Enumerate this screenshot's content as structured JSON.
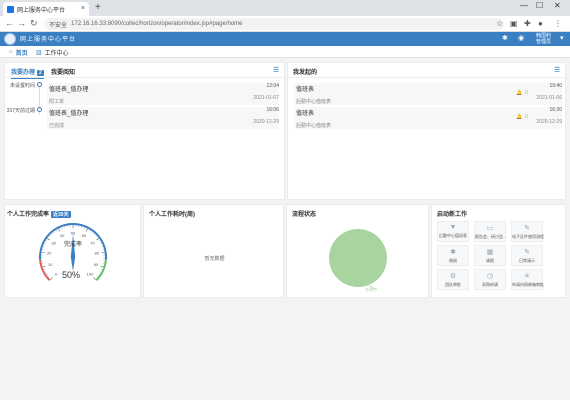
{
  "browser": {
    "tab_title": "网上服务中心平台",
    "tab_close": "×",
    "new_tab": "+",
    "win_min": "—",
    "win_max": "☐",
    "win_close": "✕",
    "insecure_label": "不安全",
    "url": "172.16.16.33:8090/coltec/horizon/operator/index.jsp#page/home"
  },
  "app": {
    "title": "网上服务中心平台",
    "user_name": "韩国利",
    "user_role": "管理员"
  },
  "nav": {
    "home": "首页",
    "workcenter": "工作中心"
  },
  "todo": {
    "tab_label": "我要办理",
    "tab_badge": "2",
    "notice_tab": "我要阅知",
    "timeline": [
      {
        "label": "未设置时间"
      },
      {
        "label": "337天前过期"
      }
    ],
    "items": [
      {
        "title": "值班表_值办理",
        "sub": "附工单",
        "time": "12:04",
        "date": "2021-01-07"
      },
      {
        "title": "值班表_值办理",
        "sub": "已完成",
        "time": "16:06",
        "date": "2020-12-29"
      }
    ]
  },
  "sent": {
    "title": "我发起的",
    "items": [
      {
        "title": "值班表",
        "sub": "后勤中心值班表",
        "count": "0",
        "time": "19:40",
        "date": "2021-01-06"
      },
      {
        "title": "值班表",
        "sub": "后勤中心值班表",
        "count": "0",
        "time": "16:30",
        "date": "2020-12-29"
      }
    ]
  },
  "gauge": {
    "title": "个人工作完成率",
    "badge": "近30天",
    "center_label": "完成率",
    "value_text": "50%",
    "value": 50,
    "ticks": [
      "0",
      "10",
      "20",
      "30",
      "40",
      "50",
      "60",
      "70",
      "80",
      "90",
      "100"
    ]
  },
  "dispatch": {
    "title": "个人工作耗时(周)",
    "empty": "暂无数据"
  },
  "flow": {
    "title": "流程状态",
    "legend": "办理中"
  },
  "quick": {
    "title": "启动新工作",
    "items": [
      {
        "label": "后勤中心值班表",
        "icon": "filter-icon",
        "glyph": "▼"
      },
      {
        "label": "报告会、研讨会...",
        "icon": "inbox-icon",
        "glyph": "▭"
      },
      {
        "label": "电子证件使用流程",
        "icon": "pen-icon",
        "glyph": "✎"
      },
      {
        "label": "借阅",
        "icon": "gear-icon",
        "glyph": "✱"
      },
      {
        "label": "请假",
        "icon": "calendar-icon",
        "glyph": "▦"
      },
      {
        "label": "日常请示",
        "icon": "edit-icon",
        "glyph": "✎"
      },
      {
        "label": "团队审批",
        "icon": "cog-icon",
        "glyph": "⚙"
      },
      {
        "label": "采购申请",
        "icon": "clock-icon",
        "glyph": "◷"
      },
      {
        "label": "申请内网邮箱审批",
        "icon": "star-icon",
        "glyph": "✳"
      }
    ]
  },
  "colors": {
    "brand": "#3a7fc1",
    "gauge_low": "#e35d5d",
    "gauge_high": "#5fbf6a",
    "pie": "#a8d4a0"
  }
}
